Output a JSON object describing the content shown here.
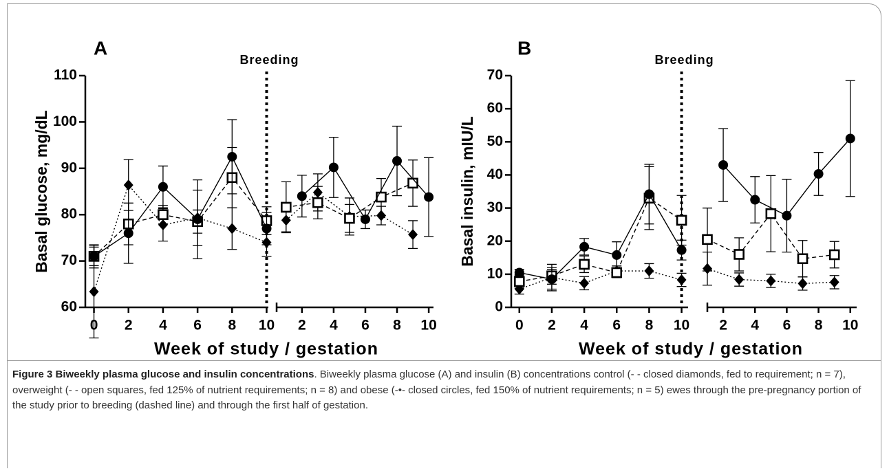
{
  "chart_data": [
    {
      "type": "line",
      "panel": "A",
      "ylabel": "Basal glucose, mg/dL",
      "xlabel": "Week of study / gestation",
      "ylim": [
        60,
        110
      ],
      "yticks": [
        60,
        70,
        80,
        90,
        100,
        110
      ],
      "breeding": {
        "label": "Breeding",
        "x": 10
      },
      "segments": [
        {
          "xlim": [
            -0.5,
            10.1
          ],
          "xticks": [
            0,
            2,
            4,
            6,
            8,
            10
          ],
          "series": [
            {
              "marker": "diamond",
              "line_style": "dotted",
              "color": "#000000",
              "x": [
                0,
                2,
                4,
                6,
                8,
                10
              ],
              "values": [
                63.4,
                86.4,
                77.8,
                79.3,
                77,
                74
              ],
              "errors": [
                10,
                5.5,
                3.5,
                6,
                4.5,
                3
              ]
            },
            {
              "marker": "square",
              "line_style": "dashed",
              "color": "#000000",
              "x": [
                0,
                2,
                4,
                6,
                8,
                10
              ],
              "values": [
                71,
                78,
                80,
                78.5,
                88,
                78.7
              ],
              "errors": [
                2,
                4.5,
                2,
                2.5,
                6.5,
                3
              ]
            },
            {
              "marker": "circle",
              "line_style": "solid",
              "color": "#000000",
              "x": [
                0,
                2,
                4,
                6,
                8,
                10
              ],
              "values": [
                71,
                76,
                86,
                79,
                92.5,
                77
              ],
              "errors": [
                2.5,
                6.5,
                4.5,
                8.5,
                8,
                3.5
              ]
            }
          ]
        },
        {
          "xlim": [
            0.4,
            10.3
          ],
          "xticks": [
            2,
            4,
            6,
            8,
            10
          ],
          "series": [
            {
              "marker": "diamond",
              "line_style": "dotted",
              "color": "#000000",
              "x": [
                1,
                3,
                5,
                7,
                9
              ],
              "values": [
                78.8,
                84.8,
                79.6,
                79.8,
                75.7
              ],
              "errors": [
                2.5,
                4,
                4,
                2,
                3
              ]
            },
            {
              "marker": "square",
              "line_style": "dashed",
              "color": "#000000",
              "x": [
                1,
                3,
                5,
                7,
                9
              ],
              "values": [
                81.6,
                82.6,
                79.2,
                83.8,
                86.8
              ],
              "errors": [
                5.5,
                3.5,
                3,
                4,
                5
              ]
            },
            {
              "marker": "circle",
              "line_style": "solid",
              "color": "#000000",
              "x": [
                2,
                4,
                6,
                8,
                10
              ],
              "values": [
                84,
                90.2,
                79,
                91.6,
                83.8
              ],
              "errors": [
                4.5,
                6.5,
                2,
                7.5,
                8.5
              ]
            }
          ]
        }
      ]
    },
    {
      "type": "line",
      "panel": "B",
      "ylabel": "Basal insulin, mIU/L",
      "xlabel": "Week of study / gestation",
      "ylim": [
        0,
        70
      ],
      "yticks": [
        0,
        10,
        20,
        30,
        40,
        50,
        60,
        70
      ],
      "breeding": {
        "label": "Breeding",
        "x": 10
      },
      "segments": [
        {
          "xlim": [
            -0.5,
            10.4
          ],
          "xticks": [
            0,
            2,
            4,
            6,
            8,
            10
          ],
          "series": [
            {
              "marker": "diamond",
              "line_style": "dotted",
              "color": "#000000",
              "x": [
                0,
                2,
                4,
                6,
                8,
                10
              ],
              "values": [
                5.5,
                9,
                7.3,
                11,
                11,
                8.3
              ],
              "errors": [
                1.5,
                4,
                2,
                1.5,
                2.2,
                2
              ]
            },
            {
              "marker": "square",
              "line_style": "dashed",
              "color": "#000000",
              "x": [
                0,
                2,
                4,
                6,
                8,
                10
              ],
              "values": [
                7.8,
                9.5,
                13,
                10.5,
                33,
                26.3
              ],
              "errors": [
                2,
                2.5,
                2.5,
                1.5,
                9.5,
                7.5
              ]
            },
            {
              "marker": "circle",
              "line_style": "solid",
              "color": "#000000",
              "x": [
                0,
                2,
                4,
                6,
                8,
                10
              ],
              "values": [
                10.5,
                8.5,
                18.3,
                15.8,
                34.2,
                17.3
              ],
              "errors": [
                1,
                3,
                2.5,
                4,
                9,
                3
              ]
            }
          ]
        },
        {
          "xlim": [
            1,
            10.4
          ],
          "xticks": [
            2,
            4,
            6,
            8,
            10
          ],
          "series": [
            {
              "marker": "diamond",
              "line_style": "dotted",
              "color": "#000000",
              "x": [
                1,
                3,
                5,
                7,
                9
              ],
              "values": [
                11.7,
                8.4,
                8,
                7.2,
                7.6
              ],
              "errors": [
                5,
                2,
                2,
                2,
                2
              ]
            },
            {
              "marker": "square",
              "line_style": "dashed",
              "color": "#000000",
              "x": [
                1,
                3,
                5,
                7,
                9
              ],
              "values": [
                20.5,
                16,
                28.3,
                14.7,
                15.9
              ],
              "errors": [
                9.5,
                5,
                11.5,
                5.5,
                4
              ]
            },
            {
              "marker": "circle",
              "line_style": "solid",
              "color": "#000000",
              "x": [
                2,
                4,
                6,
                8,
                10
              ],
              "values": [
                43,
                32.5,
                27.7,
                40.3,
                51
              ],
              "errors": [
                11,
                7,
                11,
                6.5,
                17.5
              ]
            }
          ]
        }
      ]
    }
  ],
  "caption": {
    "label": "Figure 3",
    "title": "Biweekly plasma glucose and insulin concentrations",
    "text": ". Biweekly plasma glucose (A) and insulin (B) concentrations control (-   - closed diamonds, fed to requirement; n = 7), overweight (-   - open squares, fed 125% of nutrient requirements; n = 8) and obese (-•- closed circles, fed 150% of nutrient requirements; n = 5) ewes through the pre-pregnancy portion of the study prior to breeding (dashed line) and through the first half of gestation."
  }
}
